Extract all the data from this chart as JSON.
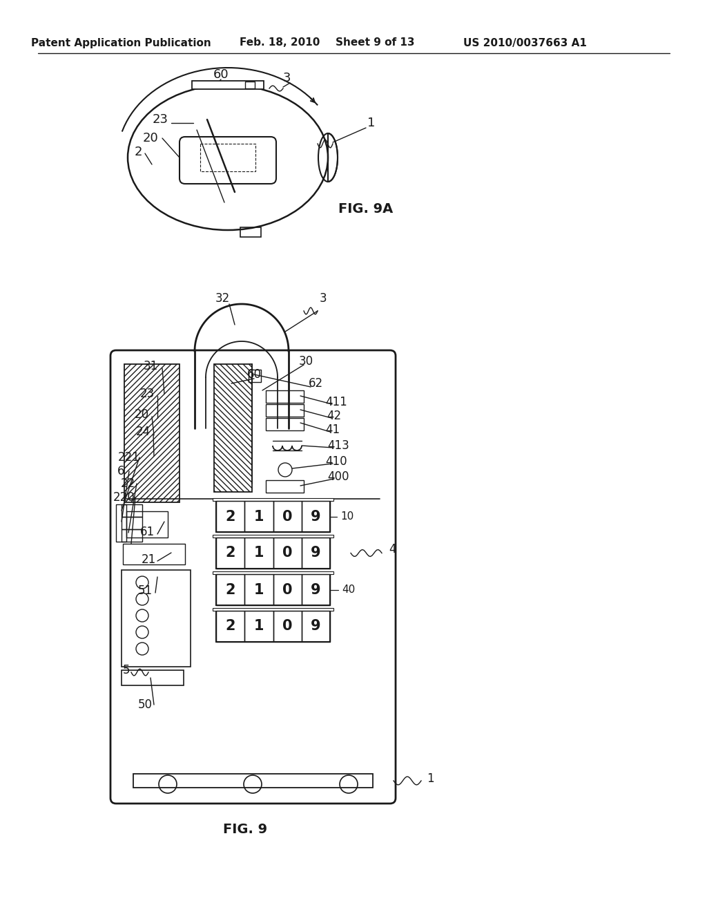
{
  "background_color": "#ffffff",
  "line_color": "#1a1a1a",
  "text_color": "#1a1a1a",
  "header_text": "Patent Application Publication",
  "header_date": "Feb. 18, 2010",
  "header_sheet": "Sheet 9 of 13",
  "header_patent": "US 2010/0037663 A1",
  "fig9a_label": "FIG. 9A",
  "fig9_label": "FIG. 9"
}
